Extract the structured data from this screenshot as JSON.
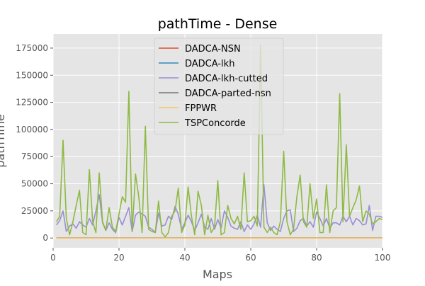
{
  "chart_data": {
    "type": "line",
    "title": "pathTime - Dense",
    "xlabel": "Maps",
    "ylabel": "pathTime",
    "xlim": [
      0,
      100
    ],
    "ylim": [
      -9000,
      188000
    ],
    "xticks": [
      0,
      20,
      40,
      60,
      80,
      100
    ],
    "yticks": [
      0,
      25000,
      50000,
      75000,
      100000,
      125000,
      150000,
      175000
    ],
    "grid": true,
    "legend_position": "top-center",
    "x": [
      1,
      2,
      3,
      4,
      5,
      6,
      7,
      8,
      9,
      10,
      11,
      12,
      13,
      14,
      15,
      16,
      17,
      18,
      19,
      20,
      21,
      22,
      23,
      24,
      25,
      26,
      27,
      28,
      29,
      30,
      31,
      32,
      33,
      34,
      35,
      36,
      37,
      38,
      39,
      40,
      41,
      42,
      43,
      44,
      45,
      46,
      47,
      48,
      49,
      50,
      51,
      52,
      53,
      54,
      55,
      56,
      57,
      58,
      59,
      60,
      61,
      62,
      63,
      64,
      65,
      66,
      67,
      68,
      69,
      70,
      71,
      72,
      73,
      74,
      75,
      76,
      77,
      78,
      79,
      80,
      81,
      82,
      83,
      84,
      85,
      86,
      87,
      88,
      89,
      90,
      91,
      92,
      93,
      94,
      95,
      96,
      97,
      98,
      99,
      100
    ],
    "series": [
      {
        "name": "DADCA-NSN",
        "color": "#e24a33",
        "values": [
          0,
          0,
          0,
          0,
          0,
          0,
          0,
          0,
          0,
          0,
          0,
          0,
          0,
          0,
          0,
          0,
          0,
          0,
          0,
          0,
          0,
          0,
          0,
          0,
          0,
          0,
          0,
          0,
          0,
          0,
          0,
          0,
          0,
          0,
          0,
          0,
          0,
          0,
          0,
          0,
          0,
          0,
          0,
          0,
          0,
          0,
          0,
          0,
          0,
          0,
          0,
          0,
          0,
          0,
          0,
          0,
          0,
          0,
          0,
          0,
          0,
          0,
          0,
          0,
          0,
          0,
          0,
          0,
          0,
          0,
          0,
          0,
          0,
          0,
          0,
          0,
          0,
          0,
          0,
          0,
          0,
          0,
          0,
          0,
          0,
          0,
          0,
          0,
          0,
          0,
          0,
          0,
          0,
          0,
          0,
          0,
          0,
          0,
          0,
          0
        ]
      },
      {
        "name": "DADCA-lkh",
        "color": "#348abd",
        "values": [
          0,
          0,
          0,
          0,
          0,
          0,
          0,
          0,
          0,
          0,
          0,
          0,
          0,
          0,
          0,
          0,
          0,
          0,
          0,
          0,
          0,
          0,
          0,
          0,
          0,
          0,
          0,
          0,
          0,
          0,
          0,
          0,
          0,
          0,
          0,
          0,
          0,
          0,
          0,
          0,
          0,
          0,
          0,
          0,
          0,
          0,
          0,
          0,
          0,
          0,
          0,
          0,
          0,
          0,
          0,
          0,
          0,
          0,
          0,
          0,
          0,
          0,
          0,
          0,
          0,
          0,
          0,
          0,
          0,
          0,
          0,
          0,
          0,
          0,
          0,
          0,
          0,
          0,
          0,
          0,
          0,
          0,
          0,
          0,
          0,
          0,
          0,
          0,
          0,
          0,
          0,
          0,
          0,
          0,
          0,
          0,
          0,
          0,
          0,
          0
        ]
      },
      {
        "name": "DADCA-lkh-cutted",
        "color": "#988ed5",
        "values": [
          12000,
          16000,
          25000,
          6000,
          11000,
          13000,
          9000,
          15000,
          12000,
          10000,
          18000,
          12000,
          25000,
          40000,
          14000,
          7000,
          14000,
          8000,
          5000,
          19000,
          12000,
          20000,
          28000,
          6000,
          21000,
          24000,
          22000,
          20000,
          10000,
          8000,
          5000,
          23000,
          11000,
          12000,
          20000,
          17000,
          29000,
          22000,
          8000,
          14000,
          21000,
          15000,
          7000,
          14000,
          22000,
          10000,
          8000,
          18000,
          8000,
          17000,
          9000,
          25000,
          19000,
          11000,
          9000,
          8000,
          15000,
          6000,
          12000,
          8000,
          13000,
          21000,
          10000,
          49000,
          14000,
          7000,
          11000,
          8000,
          6000,
          18000,
          25000,
          26000,
          6000,
          9000,
          16000,
          18000,
          11000,
          15000,
          10000,
          24000,
          18000,
          11000,
          18000,
          9000,
          14000,
          14000,
          12000,
          20000,
          15000,
          20000,
          12000,
          18000,
          16000,
          12000,
          13000,
          30000,
          7000,
          20000,
          20000,
          19000
        ]
      },
      {
        "name": "DADCA-parted-nsn",
        "color": "#777777",
        "values": [
          0,
          0,
          0,
          0,
          0,
          0,
          0,
          0,
          0,
          0,
          0,
          0,
          0,
          0,
          0,
          0,
          0,
          0,
          0,
          0,
          0,
          0,
          0,
          0,
          0,
          0,
          0,
          0,
          0,
          0,
          0,
          0,
          0,
          0,
          0,
          0,
          0,
          0,
          0,
          0,
          0,
          0,
          0,
          0,
          0,
          0,
          0,
          0,
          0,
          0,
          0,
          0,
          0,
          0,
          0,
          0,
          0,
          0,
          0,
          0,
          0,
          0,
          0,
          0,
          0,
          0,
          0,
          0,
          0,
          0,
          0,
          0,
          0,
          0,
          0,
          0,
          0,
          0,
          0,
          0,
          0,
          0,
          0,
          0,
          0,
          0,
          0,
          0,
          0,
          0,
          0,
          0,
          0,
          0,
          0,
          0,
          0,
          0,
          0,
          0
        ]
      },
      {
        "name": "FPPWR",
        "color": "#fbc15e",
        "values": [
          0,
          0,
          0,
          0,
          0,
          0,
          0,
          0,
          0,
          0,
          0,
          0,
          0,
          0,
          0,
          0,
          0,
          0,
          0,
          0,
          0,
          0,
          0,
          0,
          0,
          0,
          0,
          0,
          0,
          0,
          0,
          0,
          0,
          0,
          0,
          0,
          0,
          0,
          0,
          0,
          0,
          0,
          0,
          0,
          0,
          0,
          0,
          0,
          0,
          0,
          0,
          0,
          0,
          0,
          0,
          0,
          0,
          0,
          0,
          0,
          0,
          0,
          0,
          0,
          0,
          0,
          0,
          0,
          0,
          0,
          0,
          0,
          0,
          0,
          0,
          0,
          0,
          0,
          0,
          0,
          0,
          0,
          0,
          0,
          0,
          0,
          0,
          0,
          0,
          0,
          0,
          0,
          0,
          0,
          0,
          0,
          0,
          0,
          0,
          0
        ]
      },
      {
        "name": "TSPConcorde",
        "color": "#8eba42",
        "values": [
          15000,
          20000,
          90000,
          18000,
          3000,
          15000,
          30000,
          44000,
          5000,
          3000,
          63000,
          15000,
          5000,
          60000,
          15000,
          7000,
          28000,
          10000,
          6000,
          22000,
          38000,
          33000,
          135000,
          6000,
          59000,
          38000,
          5000,
          103000,
          8000,
          6000,
          5000,
          34000,
          5000,
          1000,
          5000,
          20000,
          25000,
          46000,
          5000,
          12000,
          47000,
          20000,
          3000,
          43000,
          30000,
          3000,
          21000,
          5000,
          10000,
          53000,
          3000,
          5000,
          30000,
          18000,
          13000,
          20000,
          8000,
          60000,
          15000,
          16000,
          20000,
          11000,
          178000,
          10000,
          5000,
          10000,
          5000,
          3000,
          15000,
          80000,
          15000,
          3000,
          8000,
          38000,
          58000,
          15000,
          10000,
          50000,
          18000,
          36000,
          5000,
          5000,
          49000,
          5000,
          25000,
          28000,
          133000,
          15000,
          86000,
          20000,
          28000,
          35000,
          48000,
          15000,
          25000,
          22000,
          13000,
          15000,
          18000,
          17000
        ]
      }
    ]
  }
}
